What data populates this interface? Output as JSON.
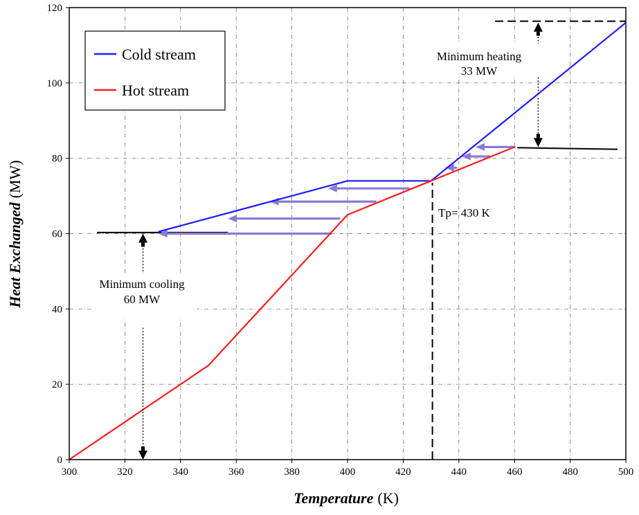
{
  "chart_data": {
    "type": "line",
    "xlabel": "Temperature",
    "xlabel_unit": "(K)",
    "ylabel": "Heat Exchanged",
    "ylabel_unit": "(MW)",
    "xlim": [
      300,
      500
    ],
    "ylim": [
      0,
      120
    ],
    "x_ticks": [
      "300",
      "320",
      "340",
      "360",
      "380",
      "400",
      "420",
      "440",
      "460",
      "480",
      "500"
    ],
    "y_ticks": [
      "0",
      "20",
      "40",
      "60",
      "80",
      "100",
      "120"
    ],
    "grid": true,
    "legend_position": "top-left",
    "series": [
      {
        "name": "Cold stream",
        "color": "#1a1aff",
        "points": [
          [
            332,
            60.5
          ],
          [
            400,
            74
          ],
          [
            430,
            74
          ],
          [
            500,
            116
          ]
        ]
      },
      {
        "name": "Hot stream",
        "color": "#ff1a1a",
        "points": [
          [
            300,
            0
          ],
          [
            350,
            25
          ],
          [
            400,
            65
          ],
          [
            430,
            74
          ],
          [
            460,
            83
          ]
        ]
      }
    ],
    "reference_lines": [
      {
        "x": [
          310,
          357
        ],
        "y": [
          60.3,
          60.3
        ],
        "color": "#000000",
        "style": "solid"
      },
      {
        "x": [
          461,
          497
        ],
        "y": [
          82.8,
          82.4
        ],
        "color": "#000000",
        "style": "solid"
      },
      {
        "x": [
          453,
          500
        ],
        "y": [
          116.4,
          116.4
        ],
        "color": "#000000",
        "style": "dashed"
      },
      {
        "x": [
          430.5,
          430.5
        ],
        "y": [
          0,
          73.5
        ],
        "color": "#000000",
        "style": "dashed"
      }
    ],
    "heat_transfer_arrows": [
      {
        "x1": 394,
        "x2": 332,
        "y": 60
      },
      {
        "x1": 397,
        "x2": 357,
        "y": 64
      },
      {
        "x1": 410,
        "x2": 372,
        "y": 68.5
      },
      {
        "x1": 422,
        "x2": 393,
        "y": 72
      },
      {
        "x1": 439,
        "x2": 435,
        "y": 77.5
      },
      {
        "x1": 451,
        "x2": 441,
        "y": 80.5
      },
      {
        "x1": 460,
        "x2": 446,
        "y": 83
      }
    ],
    "dotted_arrows": [
      {
        "x": 468.5,
        "y1": 97,
        "y2": 116,
        "head": "up"
      },
      {
        "x": 468.5,
        "y1": 96,
        "y2": 83,
        "head": "down"
      },
      {
        "x": 326.5,
        "y1": 45,
        "y2": 60,
        "head": "up"
      },
      {
        "x": 326.5,
        "y1": 35,
        "y2": 0,
        "head": "down"
      }
    ],
    "annotations": {
      "min_heating_line1": "Minimum heating",
      "min_heating_line2": "33 MW",
      "min_cooling_line1": "Minimum cooling",
      "min_cooling_line2": "60 MW",
      "pinch": "Tp= 430 K"
    }
  }
}
